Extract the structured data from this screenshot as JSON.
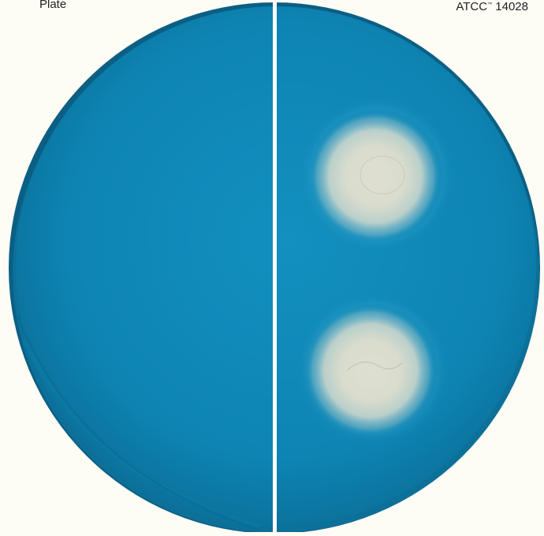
{
  "labels": {
    "left": "Plate",
    "right_prefix": "ATCC",
    "right_mark": "™",
    "right_suffix": " 14028"
  },
  "colors": {
    "background": "#fdfcf5",
    "agar": "#0e84b3",
    "agar_dark": "#0a6f98",
    "rim": "#0b5f84",
    "divider": "#ffffff",
    "colony": "#e8e6d6"
  }
}
